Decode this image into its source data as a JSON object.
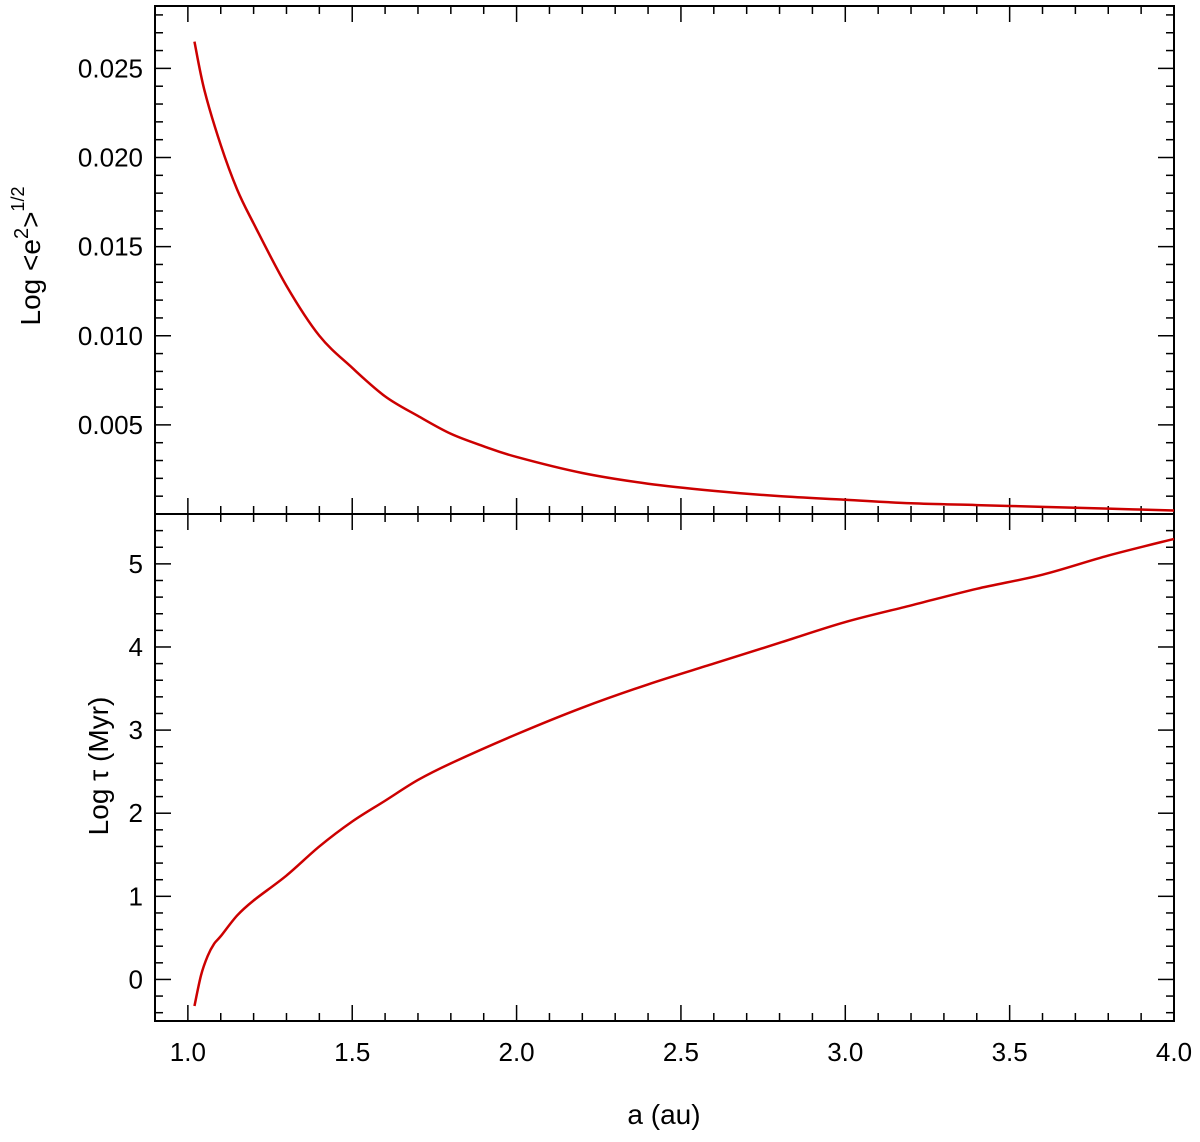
{
  "chart_data": [
    {
      "type": "line",
      "panel": "top",
      "xlabel": "",
      "ylabel_parts": {
        "main": "Log <e",
        "sup1": "2",
        "mid": ">",
        "sup2": "1/2"
      },
      "xlim": [
        0.9,
        4.0
      ],
      "ylim": [
        0.0,
        0.0285
      ],
      "yticks": [
        "0.005",
        "0.010",
        "0.015",
        "0.020",
        "0.025"
      ],
      "ytick_values": [
        0.005,
        0.01,
        0.015,
        0.02,
        0.025
      ],
      "grid": false,
      "line_color": "#cc0000",
      "series": [
        {
          "x": [
            1.02,
            1.05,
            1.1,
            1.15,
            1.2,
            1.3,
            1.4,
            1.5,
            1.6,
            1.7,
            1.8,
            1.9,
            2.0,
            2.2,
            2.4,
            2.6,
            2.8,
            3.0,
            3.2,
            3.4,
            3.6,
            3.8,
            4.0
          ],
          "y": [
            0.0265,
            0.0238,
            0.0207,
            0.0182,
            0.0163,
            0.0128,
            0.01,
            0.0082,
            0.0066,
            0.0055,
            0.0045,
            0.0038,
            0.0032,
            0.0023,
            0.0017,
            0.0013,
            0.001,
            0.0008,
            0.0006,
            0.0005,
            0.0004,
            0.0003,
            0.0002
          ]
        }
      ]
    },
    {
      "type": "line",
      "panel": "bottom",
      "xlabel": "a (au)",
      "ylabel": "Log τ (Myr)",
      "xlim": [
        0.9,
        4.0
      ],
      "ylim": [
        -0.5,
        5.6
      ],
      "xticks": [
        "1.0",
        "1.5",
        "2.0",
        "2.5",
        "3.0",
        "3.5",
        "4.0"
      ],
      "xtick_values": [
        1.0,
        1.5,
        2.0,
        2.5,
        3.0,
        3.5,
        4.0
      ],
      "yticks": [
        "0",
        "1",
        "2",
        "3",
        "4",
        "5"
      ],
      "ytick_values": [
        0,
        1,
        2,
        3,
        4,
        5
      ],
      "grid": false,
      "line_color": "#cc0000",
      "series": [
        {
          "x": [
            1.02,
            1.04,
            1.06,
            1.08,
            1.1,
            1.15,
            1.2,
            1.3,
            1.4,
            1.5,
            1.6,
            1.7,
            1.8,
            2.0,
            2.2,
            2.4,
            2.6,
            2.8,
            3.0,
            3.2,
            3.4,
            3.6,
            3.8,
            4.0
          ],
          "y": [
            -0.32,
            0.05,
            0.28,
            0.43,
            0.52,
            0.77,
            0.95,
            1.25,
            1.6,
            1.9,
            2.15,
            2.4,
            2.6,
            2.95,
            3.27,
            3.55,
            3.8,
            4.05,
            4.3,
            4.5,
            4.7,
            4.87,
            5.1,
            5.3
          ]
        }
      ]
    }
  ]
}
